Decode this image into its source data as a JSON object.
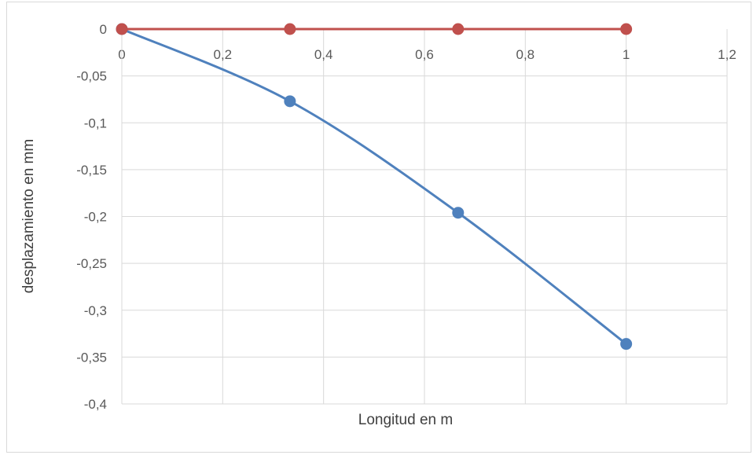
{
  "chart_data": {
    "type": "scatter",
    "title": "",
    "xlabel": "Longitud en m",
    "ylabel": "desplazamiento en mm",
    "xlim": [
      0,
      1.2
    ],
    "ylim": [
      -0.4,
      0
    ],
    "x_ticks": [
      "0",
      "0,2",
      "0,4",
      "0,6",
      "0,8",
      "1",
      "1,2"
    ],
    "y_ticks": [
      "0",
      "-0,05",
      "-0,1",
      "-0,15",
      "-0,2",
      "-0,25",
      "-0,3",
      "-0,35",
      "-0,4"
    ],
    "grid": true,
    "legend": "none",
    "series": [
      {
        "color": "#4f81bd",
        "smooth": true,
        "x": [
          0,
          0.3333,
          0.6667,
          1.0
        ],
        "y": [
          0,
          -0.077,
          -0.196,
          -0.336
        ]
      },
      {
        "color": "#c0504d",
        "smooth": false,
        "x": [
          0,
          0.3333,
          0.6667,
          1.0
        ],
        "y": [
          0,
          0,
          0,
          0
        ]
      }
    ]
  }
}
